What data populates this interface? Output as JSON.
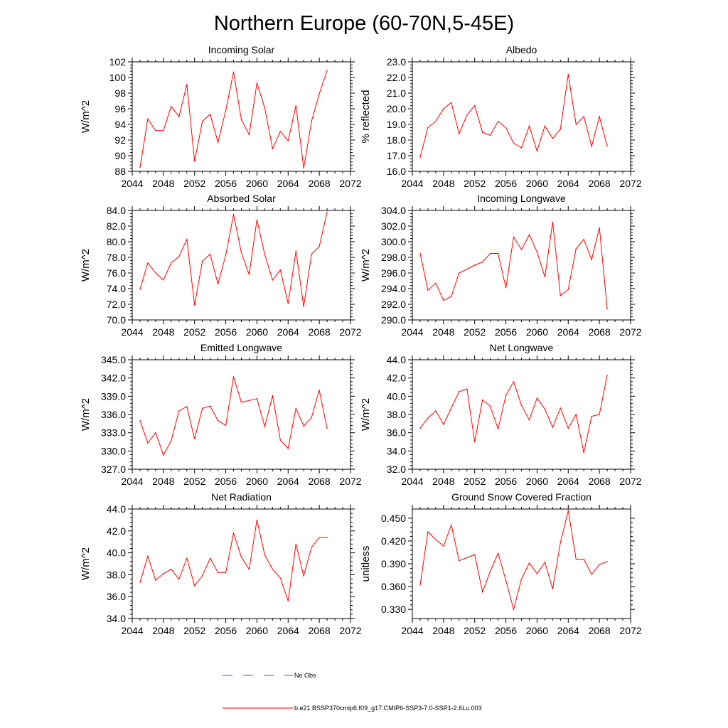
{
  "figure": {
    "title": "Northern Europe (60-70N,5-45E)",
    "legend": [
      {
        "label": "No Obs",
        "color": "#4a5fb5",
        "dash": true
      },
      {
        "label": "b.e21.BSSP370cmip6.f09_g17.CMIP6-SSP3-7.0-SSP1-2.6Lu.003",
        "color": "#ff0000",
        "dash": false
      }
    ]
  },
  "chart_data": [
    {
      "type": "line",
      "title": "Incoming Solar",
      "xlabel": "",
      "ylabel": "W/m^2",
      "xlim": [
        2044,
        2072
      ],
      "xticks": [
        2044,
        2048,
        2052,
        2056,
        2060,
        2064,
        2068,
        2072
      ],
      "ylim": [
        88,
        102
      ],
      "yticks": [
        88,
        90,
        92,
        94,
        96,
        98,
        100,
        102
      ],
      "ydec": 0,
      "x": [
        2045,
        2046,
        2047,
        2048,
        2049,
        2050,
        2051,
        2052,
        2053,
        2054,
        2055,
        2056,
        2057,
        2058,
        2059,
        2060,
        2061,
        2062,
        2063,
        2064,
        2065,
        2066,
        2067,
        2068,
        2069
      ],
      "series": [
        {
          "color": "#ff0000",
          "values": [
            88.5,
            94.7,
            93.2,
            93.2,
            96.3,
            95.0,
            99.1,
            89.3,
            94.4,
            95.3,
            91.7,
            95.8,
            100.7,
            94.6,
            92.7,
            99.3,
            96.1,
            90.9,
            93.1,
            91.9,
            96.4,
            88.4,
            94.4,
            97.9,
            100.9
          ]
        }
      ]
    },
    {
      "type": "line",
      "title": "Albedo",
      "xlabel": "",
      "ylabel": "% reflected",
      "xlim": [
        2044,
        2072
      ],
      "xticks": [
        2044,
        2048,
        2052,
        2056,
        2060,
        2064,
        2068,
        2072
      ],
      "ylim": [
        16.0,
        23.0
      ],
      "yticks": [
        16.0,
        17.0,
        18.0,
        19.0,
        20.0,
        21.0,
        22.0,
        23.0
      ],
      "ydec": 1,
      "x": [
        2045,
        2046,
        2047,
        2048,
        2049,
        2050,
        2051,
        2052,
        2053,
        2054,
        2055,
        2056,
        2057,
        2058,
        2059,
        2060,
        2061,
        2062,
        2063,
        2064,
        2065,
        2066,
        2067,
        2068,
        2069
      ],
      "series": [
        {
          "color": "#ff0000",
          "values": [
            16.9,
            18.8,
            19.2,
            20.0,
            20.4,
            18.4,
            19.6,
            20.2,
            18.5,
            18.3,
            19.2,
            18.8,
            17.8,
            17.5,
            18.9,
            17.3,
            18.9,
            18.1,
            18.7,
            22.2,
            19.0,
            19.5,
            17.6,
            19.5,
            17.6
          ]
        }
      ]
    },
    {
      "type": "line",
      "title": "Absorbed Solar",
      "xlabel": "",
      "ylabel": "W/m^2",
      "xlim": [
        2044,
        2072
      ],
      "xticks": [
        2044,
        2048,
        2052,
        2056,
        2060,
        2064,
        2068,
        2072
      ],
      "ylim": [
        70.0,
        84.0
      ],
      "yticks": [
        70.0,
        72.0,
        74.0,
        76.0,
        78.0,
        80.0,
        82.0,
        84.0
      ],
      "ydec": 1,
      "x": [
        2045,
        2046,
        2047,
        2048,
        2049,
        2050,
        2051,
        2052,
        2053,
        2054,
        2055,
        2056,
        2057,
        2058,
        2059,
        2060,
        2061,
        2062,
        2063,
        2064,
        2065,
        2066,
        2067,
        2068,
        2069
      ],
      "series": [
        {
          "color": "#ff0000",
          "values": [
            73.9,
            77.3,
            76.0,
            75.1,
            77.3,
            78.1,
            80.3,
            71.9,
            77.5,
            78.4,
            74.6,
            78.3,
            83.5,
            78.6,
            75.8,
            82.8,
            78.4,
            75.1,
            76.4,
            72.1,
            78.8,
            71.7,
            78.4,
            79.4,
            83.8
          ]
        }
      ]
    },
    {
      "type": "line",
      "title": "Incoming Longwave",
      "xlabel": "",
      "ylabel": "W/m^2",
      "xlim": [
        2044,
        2072
      ],
      "xticks": [
        2044,
        2048,
        2052,
        2056,
        2060,
        2064,
        2068,
        2072
      ],
      "ylim": [
        290.0,
        304.0
      ],
      "yticks": [
        290.0,
        292.0,
        294.0,
        296.0,
        298.0,
        300.0,
        302.0,
        304.0
      ],
      "ydec": 1,
      "x": [
        2045,
        2046,
        2047,
        2048,
        2049,
        2050,
        2051,
        2052,
        2053,
        2054,
        2055,
        2056,
        2057,
        2058,
        2059,
        2060,
        2061,
        2062,
        2063,
        2064,
        2065,
        2066,
        2067,
        2068,
        2069
      ],
      "series": [
        {
          "color": "#ff0000",
          "values": [
            298.5,
            293.8,
            294.7,
            292.5,
            293.0,
            296.0,
            296.5,
            297.0,
            297.4,
            298.5,
            298.5,
            294.1,
            300.6,
            299.0,
            300.9,
            298.7,
            295.5,
            302.5,
            293.1,
            293.9,
            299.1,
            300.3,
            297.7,
            301.8,
            291.4
          ]
        }
      ]
    },
    {
      "type": "line",
      "title": "Emitted Longwave",
      "xlabel": "",
      "ylabel": "W/m^2",
      "xlim": [
        2044,
        2072
      ],
      "xticks": [
        2044,
        2048,
        2052,
        2056,
        2060,
        2064,
        2068,
        2072
      ],
      "ylim": [
        327.0,
        345.0
      ],
      "yticks": [
        327.0,
        330.0,
        333.0,
        336.0,
        339.0,
        342.0,
        345.0
      ],
      "ydec": 1,
      "x": [
        2045,
        2046,
        2047,
        2048,
        2049,
        2050,
        2051,
        2052,
        2053,
        2054,
        2055,
        2056,
        2057,
        2058,
        2059,
        2060,
        2061,
        2062,
        2063,
        2064,
        2065,
        2066,
        2067,
        2068,
        2069
      ],
      "series": [
        {
          "color": "#ff0000",
          "values": [
            335.0,
            331.3,
            333.0,
            329.3,
            331.7,
            336.6,
            337.3,
            332.0,
            337.0,
            337.4,
            335.0,
            334.2,
            342.2,
            338.0,
            338.3,
            338.6,
            334.0,
            339.1,
            331.8,
            330.4,
            337.0,
            334.1,
            335.5,
            340.0,
            333.7
          ]
        }
      ]
    },
    {
      "type": "line",
      "title": "Net Longwave",
      "xlabel": "",
      "ylabel": "W/m^2",
      "xlim": [
        2044,
        2072
      ],
      "xticks": [
        2044,
        2048,
        2052,
        2056,
        2060,
        2064,
        2068,
        2072
      ],
      "ylim": [
        32.0,
        44.0
      ],
      "yticks": [
        32.0,
        34.0,
        36.0,
        38.0,
        40.0,
        42.0,
        44.0
      ],
      "ydec": 1,
      "x": [
        2045,
        2046,
        2047,
        2048,
        2049,
        2050,
        2051,
        2052,
        2053,
        2054,
        2055,
        2056,
        2057,
        2058,
        2059,
        2060,
        2061,
        2062,
        2063,
        2064,
        2065,
        2066,
        2067,
        2068,
        2069
      ],
      "series": [
        {
          "color": "#ff0000",
          "values": [
            36.5,
            37.6,
            38.4,
            36.9,
            38.7,
            40.5,
            40.8,
            35.0,
            39.6,
            38.9,
            36.4,
            40.1,
            41.6,
            39.0,
            37.4,
            39.8,
            38.6,
            36.6,
            38.7,
            36.5,
            38.0,
            33.8,
            37.8,
            38.0,
            42.3
          ]
        }
      ]
    },
    {
      "type": "line",
      "title": "Net Radiation",
      "xlabel": "",
      "ylabel": "W/m^2",
      "xlim": [
        2044,
        2072
      ],
      "xticks": [
        2044,
        2048,
        2052,
        2056,
        2060,
        2064,
        2068,
        2072
      ],
      "ylim": [
        34.0,
        44.0
      ],
      "yticks": [
        34.0,
        36.0,
        38.0,
        40.0,
        42.0,
        44.0
      ],
      "ydec": 1,
      "x": [
        2045,
        2046,
        2047,
        2048,
        2049,
        2050,
        2051,
        2052,
        2053,
        2054,
        2055,
        2056,
        2057,
        2058,
        2059,
        2060,
        2061,
        2062,
        2063,
        2064,
        2065,
        2066,
        2067,
        2068,
        2069
      ],
      "series": [
        {
          "color": "#ff0000",
          "values": [
            37.3,
            39.7,
            37.5,
            38.1,
            38.5,
            37.6,
            39.5,
            37.0,
            37.9,
            39.5,
            38.2,
            38.2,
            41.8,
            39.6,
            38.5,
            43.0,
            39.8,
            38.5,
            37.7,
            35.6,
            40.8,
            37.9,
            40.5,
            41.4,
            41.4
          ]
        }
      ]
    },
    {
      "type": "line",
      "title": "Ground Snow Covered Fraction",
      "xlabel": "",
      "ylabel": "unitless",
      "xlim": [
        2044,
        2072
      ],
      "xticks": [
        2044,
        2048,
        2052,
        2056,
        2060,
        2064,
        2068,
        2072
      ],
      "ylim": [
        0.318,
        0.462
      ],
      "yticks": [
        0.33,
        0.36,
        0.39,
        0.42,
        0.45
      ],
      "ydec": 3,
      "x": [
        2045,
        2046,
        2047,
        2048,
        2049,
        2050,
        2051,
        2052,
        2053,
        2054,
        2055,
        2056,
        2057,
        2058,
        2059,
        2060,
        2061,
        2062,
        2063,
        2064,
        2065,
        2066,
        2067,
        2068,
        2069
      ],
      "series": [
        {
          "color": "#ff0000",
          "values": [
            0.362,
            0.432,
            0.422,
            0.413,
            0.441,
            0.394,
            0.398,
            0.402,
            0.353,
            0.38,
            0.404,
            0.368,
            0.33,
            0.37,
            0.391,
            0.377,
            0.392,
            0.357,
            0.418,
            0.46,
            0.396,
            0.396,
            0.376,
            0.389,
            0.393
          ]
        }
      ]
    }
  ]
}
